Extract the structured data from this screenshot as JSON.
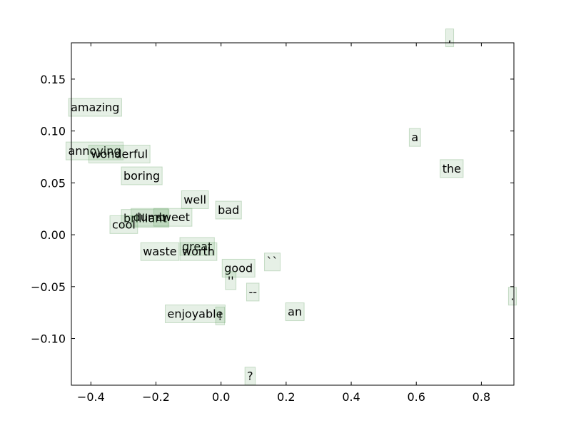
{
  "chart_data": {
    "type": "scatter",
    "title": "",
    "xlabel": "",
    "ylabel": "",
    "xlim": [
      -0.46,
      0.9
    ],
    "ylim": [
      -0.145,
      0.185
    ],
    "grid": false,
    "box_color": "#5a9a5a",
    "box_fill_opacity": 0.15,
    "x_ticks": [
      -0.4,
      -0.2,
      0.0,
      0.2,
      0.4,
      0.6,
      0.8
    ],
    "x_tick_labels": [
      "−0.4",
      "−0.2",
      "0.0",
      "0.2",
      "0.4",
      "0.6",
      "0.8"
    ],
    "y_ticks": [
      0.15,
      0.1,
      0.05,
      0.0,
      -0.05,
      -0.1
    ],
    "y_tick_labels": [
      "0.15",
      "0.10",
      "0.05",
      "0.00",
      "−0.05",
      "−0.10"
    ],
    "points": [
      {
        "label": ",",
        "x": 0.697,
        "y": 0.186
      },
      {
        "label": "amazing",
        "x": -0.462,
        "y": 0.119
      },
      {
        "label": "a",
        "x": 0.585,
        "y": 0.09
      },
      {
        "label": "annoying",
        "x": -0.47,
        "y": 0.077
      },
      {
        "label": "wonderful",
        "x": -0.4,
        "y": 0.074
      },
      {
        "label": "the",
        "x": 0.68,
        "y": 0.06
      },
      {
        "label": "boring",
        "x": -0.3,
        "y": 0.053
      },
      {
        "label": "well",
        "x": -0.115,
        "y": 0.03
      },
      {
        "label": "bad",
        "x": -0.01,
        "y": 0.02
      },
      {
        "label": "brilliant",
        "x": -0.3,
        "y": 0.012
      },
      {
        "label": "dumb",
        "x": -0.27,
        "y": 0.013
      },
      {
        "label": "sweet",
        "x": -0.2,
        "y": 0.013
      },
      {
        "label": "cool",
        "x": -0.335,
        "y": 0.006
      },
      {
        "label": "great",
        "x": -0.12,
        "y": -0.015
      },
      {
        "label": "worth",
        "x": -0.12,
        "y": -0.02
      },
      {
        "label": "waste",
        "x": -0.24,
        "y": -0.02
      },
      {
        "label": "``",
        "x": 0.14,
        "y": -0.03
      },
      {
        "label": "good",
        "x": 0.01,
        "y": -0.036
      },
      {
        "label": "''",
        "x": 0.02,
        "y": -0.048
      },
      {
        "label": "--",
        "x": 0.085,
        "y": -0.059
      },
      {
        "label": ".",
        "x": 0.89,
        "y": -0.063
      },
      {
        "label": "an",
        "x": 0.205,
        "y": -0.078
      },
      {
        "label": "enjoyable",
        "x": -0.165,
        "y": -0.08
      },
      {
        "label": "!",
        "x": -0.01,
        "y": -0.082
      },
      {
        "label": "?",
        "x": 0.08,
        "y": -0.14
      }
    ]
  }
}
